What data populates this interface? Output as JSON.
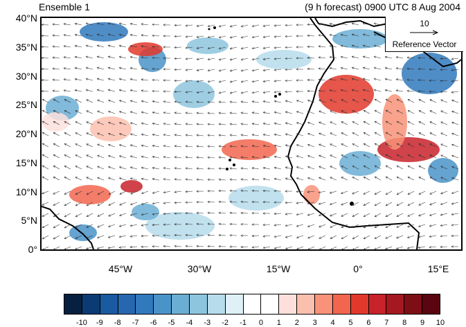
{
  "title_left": "Ensemble 1",
  "title_right": "(9 h forecast) 0900 UTC 8 Aug 2004",
  "y_ticks": [
    "40°N",
    "35°N",
    "30°N",
    "25°N",
    "20°N",
    "15°N",
    "10°N",
    "5°N",
    "0°"
  ],
  "x_ticks": [
    "45°W",
    "30°W",
    "15°W",
    "0°",
    "15°E"
  ],
  "reference_vector": {
    "value": "10",
    "label": "Reference Vector"
  },
  "colorbar": {
    "labels": [
      "-10",
      "-9",
      "-8",
      "-7",
      "-6",
      "-5",
      "-4",
      "-3",
      "-2",
      "-1",
      "0",
      "1",
      "2",
      "3",
      "4",
      "5",
      "6",
      "7",
      "8",
      "9",
      "10"
    ],
    "colors": [
      "#08203f",
      "#0b3b73",
      "#1a5aa0",
      "#2767b0",
      "#3079bd",
      "#4a93c8",
      "#6baed3",
      "#8ec5de",
      "#b6dcec",
      "#dff0f7",
      "#ffffff",
      "#ffffff",
      "#fde0dc",
      "#fbbfae",
      "#f89278",
      "#f2664f",
      "#e2382c",
      "#c8222a",
      "#a5181f",
      "#7d0e16",
      "#5a0510"
    ]
  },
  "chart_data": {
    "type": "map",
    "lat_range": [
      0,
      40
    ],
    "lon_range": [
      -60,
      20
    ],
    "field": "shaded anomaly with wind vectors"
  }
}
